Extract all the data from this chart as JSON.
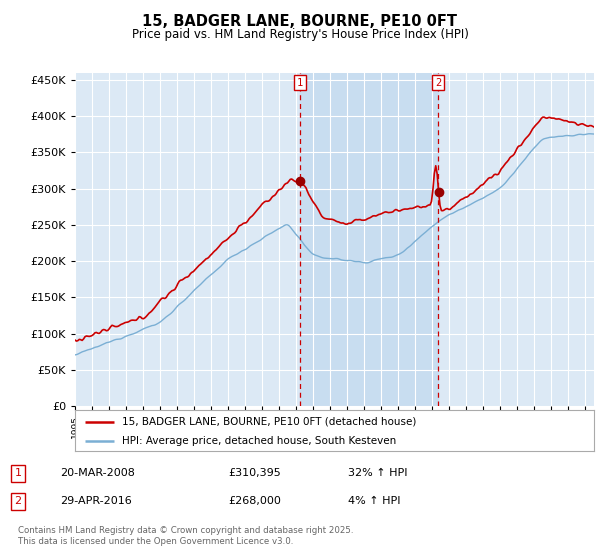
{
  "title": "15, BADGER LANE, BOURNE, PE10 0FT",
  "subtitle": "Price paid vs. HM Land Registry's House Price Index (HPI)",
  "ylim": [
    0,
    460000
  ],
  "yticks": [
    0,
    50000,
    100000,
    150000,
    200000,
    250000,
    300000,
    350000,
    400000,
    450000
  ],
  "xlim_start": 1995.0,
  "xlim_end": 2025.5,
  "sale1_date": 2008.22,
  "sale1_price": 310395,
  "sale2_date": 2016.33,
  "sale2_price": 268000,
  "hpi_color": "#7bafd4",
  "price_color": "#cc0000",
  "vline_color": "#cc0000",
  "bg_color": "#dce9f5",
  "shade_color": "#c8ddf0",
  "plot_bg": "#ffffff",
  "legend_label_red": "15, BADGER LANE, BOURNE, PE10 0FT (detached house)",
  "legend_label_blue": "HPI: Average price, detached house, South Kesteven",
  "footer": "Contains HM Land Registry data © Crown copyright and database right 2025.\nThis data is licensed under the Open Government Licence v3.0."
}
